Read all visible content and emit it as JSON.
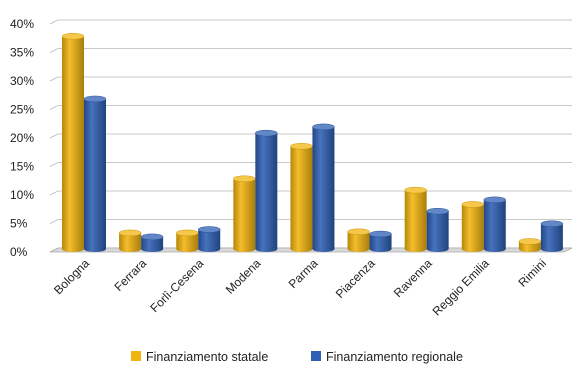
{
  "chart_data": {
    "type": "bar",
    "categories": [
      "Bologna",
      "Ferrara",
      "Forlì-Cesena",
      "Modena",
      "Parma",
      "Piacenza",
      "Ravenna",
      "Reggio Emilia",
      "Rimini"
    ],
    "series": [
      {
        "name": "Finanziamento statale",
        "values": [
          37.5,
          3,
          3,
          12.5,
          18.2,
          3.2,
          10.5,
          8,
          1.5
        ],
        "color": "#f2b40e"
      },
      {
        "name": "Finanziamento regionale",
        "values": [
          26.5,
          2.3,
          3.6,
          20.5,
          21.6,
          2.8,
          6.8,
          8.8,
          4.6
        ],
        "color": "#2e5fb4"
      }
    ],
    "y_ticks": [
      "0%",
      "5%",
      "10%",
      "15%",
      "20%",
      "25%",
      "30%",
      "35%",
      "40%"
    ],
    "ylim": [
      0,
      40
    ],
    "grid": "horizontal",
    "legend_position": "bottom-center",
    "style": "3d-cylinder-columns"
  }
}
